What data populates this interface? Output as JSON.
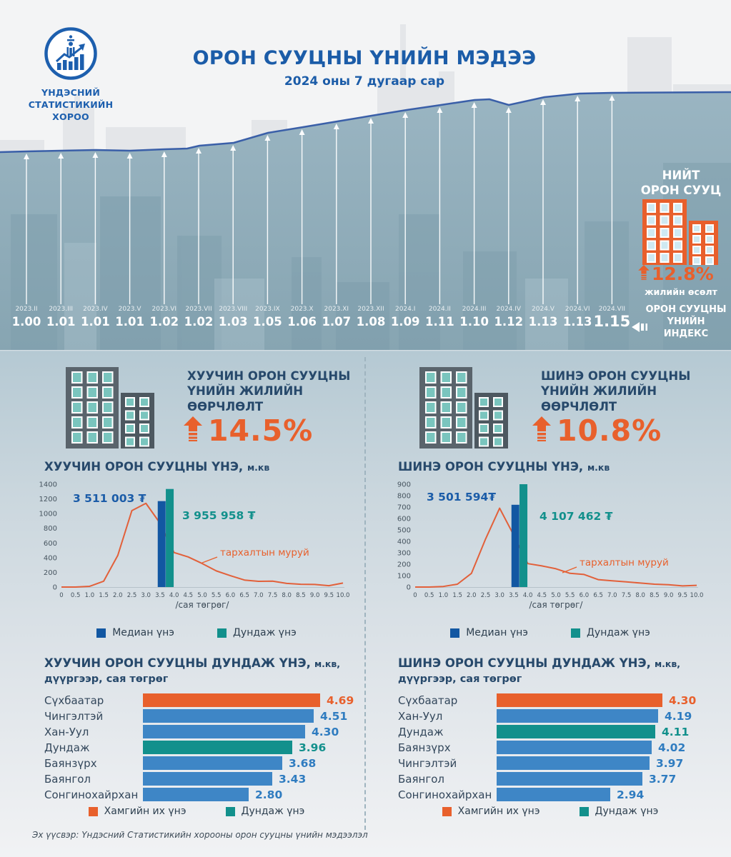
{
  "colors": {
    "title_blue": "#1b5ca8",
    "navy_text": "#27496b",
    "orange": "#e8602c",
    "teal": "#12908c",
    "median_navy": "#1257a2",
    "bar_blue": "#3e86c6",
    "value_blue": "#2f7cc0",
    "area_line_blue": "#3a5fa8",
    "curve_orange": "#e2603a"
  },
  "header": {
    "org_name": "ҮНДЭСНИЙ\nСТАТИСТИКИЙН\nХОРОО",
    "title": "ОРОН СУУЦНЫ ҮНИЙН МЭДЭЭ",
    "subtitle": "2024 оны 7 дугаар сар"
  },
  "banner": {
    "total_title": "НИЙТ\nОРОН СУУЦ",
    "total_growth": "12.8%",
    "total_growth_label": "жилийн өсөлт",
    "index_label": "ОРОН СУУЦНЫ\nҮНИЙН\nИНДЕКС"
  },
  "sections": {
    "old": {
      "change_title": "ХУУЧИН ОРОН СУУЦНЫ\nҮНИЙН ЖИЛИЙН\nӨӨРЧЛӨЛТ",
      "change_value": "14.5%",
      "price_title": "ХУУЧИН ОРОН СУУЦНЫ ҮНЭ,",
      "price_unit": "м.кв",
      "avg_title": "ХУУЧИН ОРОН СУУЦНЫ ДУНДАЖ ҮНЭ,",
      "avg_unit": "м.кв,",
      "avg_sub": "дүүргээр, сая төгрөг"
    },
    "new": {
      "change_title": "ШИНЭ ОРОН СУУЦНЫ\nҮНИЙН ЖИЛИЙН\nӨӨРЧЛӨЛТ",
      "change_value": "10.8%",
      "price_title": "ШИНЭ ОРОН СУУЦНЫ ҮНЭ,",
      "price_unit": "м.кв",
      "avg_title": "ШИНЭ ОРОН СУУЦНЫ ДУНДАЖ ҮНЭ,",
      "avg_unit": "м.кв,",
      "avg_sub": "дүүргээр, сая төгрөг"
    }
  },
  "footer": {
    "source": "Эх үүсвэр: Үндэсний Статистикийн хорооны орон сууцны үнийн мэдээлэл"
  },
  "chart_data": [
    {
      "id": "housing-price-index",
      "type": "line",
      "title": "ОРОН СУУЦНЫ ҮНИЙН ИНДЕКС",
      "x": [
        "2023.II",
        "2023.III",
        "2023.IV",
        "2023.V",
        "2023.VI",
        "2023.VII",
        "2023.VIII",
        "2023.IX",
        "2023.X",
        "2023.XI",
        "2023.XII",
        "2024.I",
        "2024.II",
        "2024.III",
        "2024.IV",
        "2024.V",
        "2024.VI",
        "2024.VII"
      ],
      "values": [
        1.0,
        1.01,
        1.01,
        1.01,
        1.02,
        1.02,
        1.03,
        1.05,
        1.06,
        1.07,
        1.08,
        1.09,
        1.11,
        1.1,
        1.12,
        1.13,
        1.13,
        1.15
      ],
      "display": [
        "1.00",
        "1.01",
        "1.01",
        "1.01",
        "1.02",
        "1.02",
        "1.03",
        "1.05",
        "1.06",
        "1.07",
        "1.08",
        "1.09",
        "1.11",
        "1.10",
        "1.12",
        "1.13",
        "1.13",
        "1.15"
      ]
    },
    {
      "id": "old-housing-distribution",
      "type": "area",
      "title": "ХУУЧИН ОРОН СУУЦНЫ ҮНЭ, м.кв",
      "x": [
        0,
        0.5,
        1,
        1.5,
        2,
        2.5,
        3,
        3.5,
        4,
        4.5,
        5,
        5.5,
        6,
        6.5,
        7,
        7.5,
        8,
        8.5,
        9,
        9.5,
        10
      ],
      "xtick_labels": [
        "0",
        "0.5",
        "1.0",
        "1.5",
        "2.0",
        "2.5",
        "3.0",
        "3.5",
        "4.0",
        "4.5",
        "5.0",
        "5.5",
        "6.0",
        "6.5",
        "7.0",
        "7.5",
        "8.0",
        "8.5",
        "9.0",
        "9.5",
        "10.0"
      ],
      "curve": [
        0,
        0,
        10,
        80,
        430,
        1040,
        1140,
        870,
        470,
        410,
        320,
        220,
        155,
        95,
        78,
        80,
        50,
        38,
        35,
        18,
        55
      ],
      "ylim": [
        0,
        1400
      ],
      "ytick_step": 200,
      "xlabel": "/сая төгрөг/",
      "median_price_label": "3 511 003 ₮",
      "mean_price_label": "3 955 958 ₮",
      "median_bar_value": 1170,
      "mean_bar_value": 1335,
      "curve_label": "тархалтын муруй",
      "legend": [
        "Медиан үнэ",
        "Дундаж үнэ"
      ]
    },
    {
      "id": "new-housing-distribution",
      "type": "area",
      "title": "ШИНЭ ОРОН СУУЦНЫ ҮНЭ, м.кв",
      "x": [
        0,
        0.5,
        1,
        1.5,
        2,
        2.5,
        3,
        3.5,
        4,
        4.5,
        5,
        5.5,
        6,
        6.5,
        7,
        7.5,
        8,
        8.5,
        9,
        9.5,
        10
      ],
      "xtick_labels": [
        "0",
        "0.5",
        "1.0",
        "1.5",
        "2.0",
        "2.5",
        "3.0",
        "3.5",
        "4.0",
        "4.5",
        "5.0",
        "5.5",
        "6.0",
        "6.5",
        "7.0",
        "7.5",
        "8.0",
        "8.5",
        "9.0",
        "9.5",
        "10.0"
      ],
      "curve": [
        0,
        0,
        5,
        25,
        120,
        420,
        690,
        455,
        205,
        185,
        160,
        120,
        110,
        65,
        55,
        45,
        35,
        25,
        20,
        10,
        15
      ],
      "ylim": [
        0,
        900
      ],
      "ytick_step": 100,
      "xlabel": "/сая төгрөг/",
      "median_price_label": "3 501 594₮",
      "mean_price_label": "4 107 462 ₮",
      "median_bar_value": 720,
      "mean_bar_value": 900,
      "curve_label": "тархалтын муруй",
      "legend": [
        "Медиан үнэ",
        "Дундаж үнэ"
      ]
    },
    {
      "id": "old-housing-by-district",
      "type": "bar",
      "title": "ХУУЧИН ОРОН СУУЦНЫ ДУНДАЖ ҮНЭ, м.кв, дүүргээр, сая төгрөг",
      "categories": [
        "Сүхбаатар",
        "Чингэлтэй",
        "Хан-Уул",
        "Дундаж",
        "Баянзүрх",
        "Баянгол",
        "Сонгинохайрхан"
      ],
      "values": [
        4.69,
        4.51,
        4.3,
        3.96,
        3.68,
        3.43,
        2.8
      ],
      "display": [
        "4.69",
        "4.51",
        "4.30",
        "3.96",
        "3.68",
        "3.43",
        "2.80"
      ],
      "roles": [
        "max",
        "normal",
        "normal",
        "avg",
        "normal",
        "normal",
        "normal"
      ],
      "legend": [
        "Хамгийн их үнэ",
        "Дундаж үнэ"
      ]
    },
    {
      "id": "new-housing-by-district",
      "type": "bar",
      "title": "ШИНЭ ОРОН СУУЦНЫ ДУНДАЖ ҮНЭ, м.кв, дүүргээр, сая төгрөг",
      "categories": [
        "Сүхбаатар",
        "Хан-Уул",
        "Дундаж",
        "Баянзүрх",
        "Чингэлтэй",
        "Баянгол",
        "Сонгинохайрхан"
      ],
      "values": [
        4.3,
        4.19,
        4.11,
        4.02,
        3.97,
        3.77,
        2.94
      ],
      "display": [
        "4.30",
        "4.19",
        "4.11",
        "4.02",
        "3.97",
        "3.77",
        "2.94"
      ],
      "roles": [
        "max",
        "normal",
        "avg",
        "normal",
        "normal",
        "normal",
        "normal"
      ],
      "legend": [
        "Хамгийн их үнэ",
        "Дундаж үнэ"
      ]
    }
  ]
}
